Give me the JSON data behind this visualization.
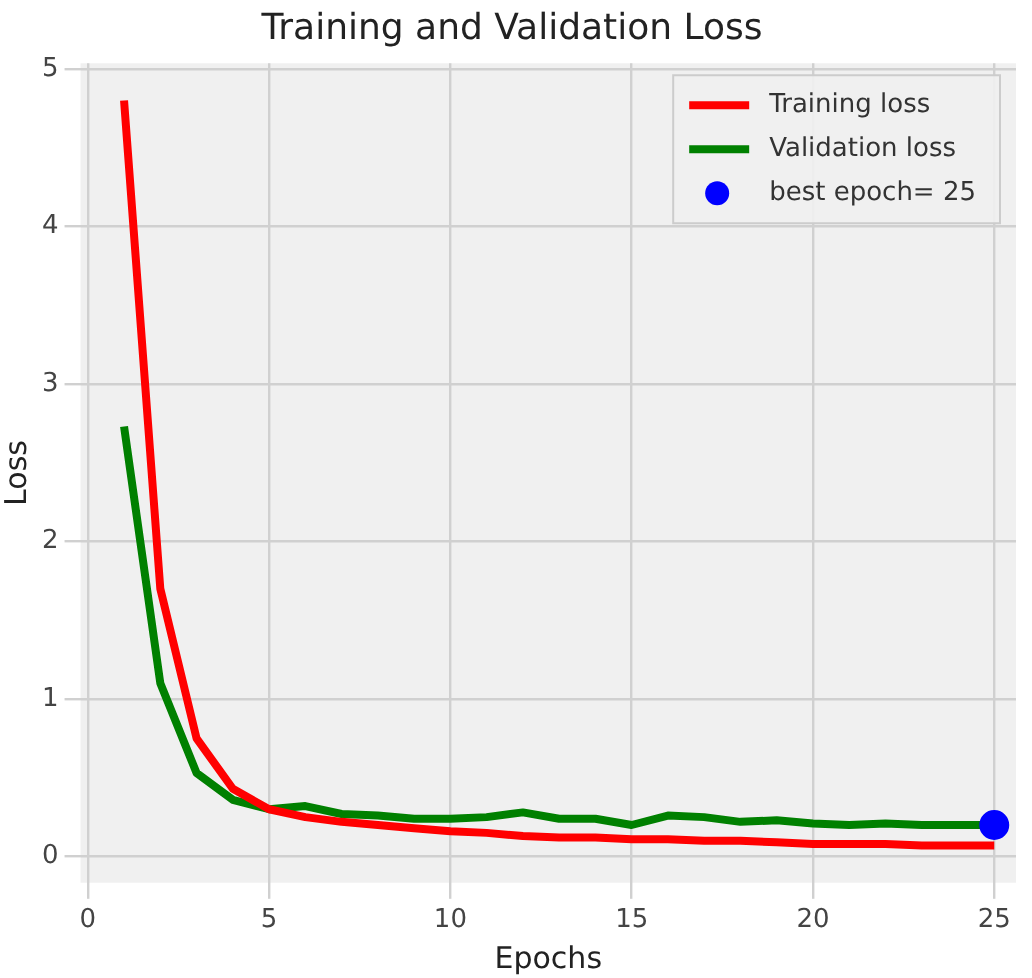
{
  "chart_data": {
    "type": "line",
    "title": "Training and Validation Loss",
    "xlabel": "Epochs",
    "ylabel": "Loss",
    "x": [
      1,
      2,
      3,
      4,
      5,
      6,
      7,
      8,
      9,
      10,
      11,
      12,
      13,
      14,
      15,
      16,
      17,
      18,
      19,
      20,
      21,
      22,
      23,
      24,
      25
    ],
    "series": [
      {
        "name": "Training loss",
        "color": "#ff0000",
        "marker": "none",
        "values": [
          4.8,
          1.7,
          0.75,
          0.43,
          0.3,
          0.25,
          0.22,
          0.2,
          0.18,
          0.16,
          0.15,
          0.13,
          0.12,
          0.12,
          0.11,
          0.11,
          0.1,
          0.1,
          0.09,
          0.08,
          0.08,
          0.08,
          0.07,
          0.07,
          0.07
        ]
      },
      {
        "name": "Validation loss",
        "color": "#008000",
        "marker": "none",
        "values": [
          2.73,
          1.1,
          0.53,
          0.36,
          0.3,
          0.32,
          0.27,
          0.26,
          0.24,
          0.24,
          0.25,
          0.28,
          0.24,
          0.24,
          0.2,
          0.26,
          0.25,
          0.22,
          0.23,
          0.21,
          0.2,
          0.21,
          0.2,
          0.2,
          0.2
        ]
      },
      {
        "name": "best epoch= 25",
        "type": "scatter",
        "marker": "circle",
        "color": "#0000ff",
        "x": [
          25
        ],
        "values": [
          0.2
        ]
      }
    ],
    "xlim": [
      -0.2,
      25.6
    ],
    "xticks": [
      0,
      5,
      10,
      15,
      20,
      25
    ],
    "ylim": [
      -0.167,
      5.037
    ],
    "yticks": [
      0,
      1,
      2,
      3,
      4,
      5
    ],
    "grid": true,
    "legend": "top right",
    "line_style": "solid"
  }
}
